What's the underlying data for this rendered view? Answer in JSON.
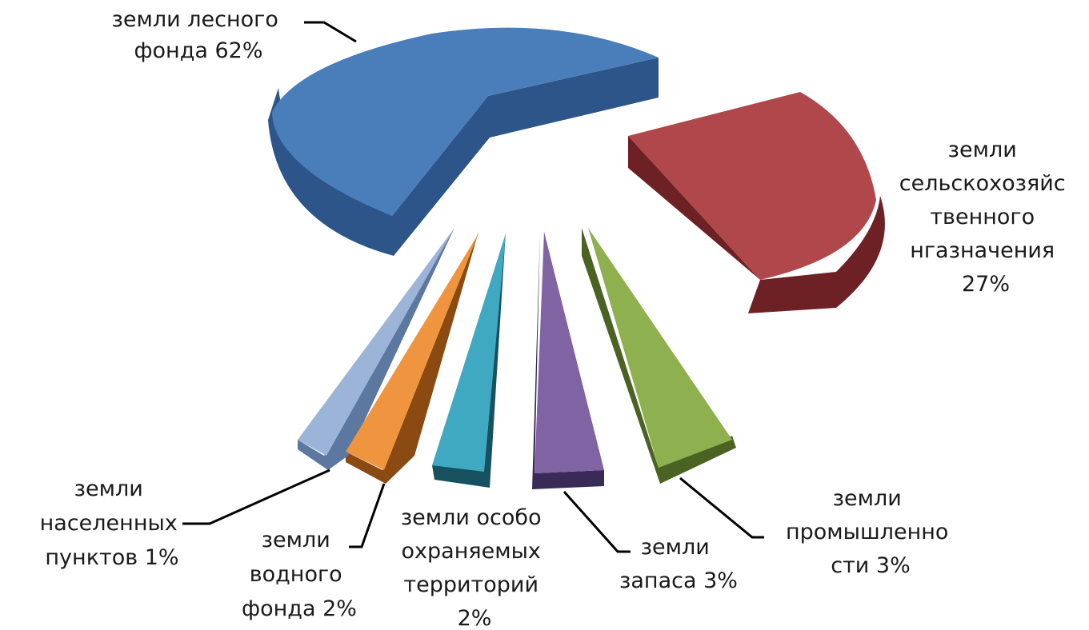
{
  "chart_data": {
    "type": "pie",
    "style": "3d-exploded",
    "slices": [
      {
        "label_lines": [
          "земли лесного",
          "фонда 62%"
        ],
        "value": 62,
        "color": "#4a7ebb"
      },
      {
        "label_lines": [
          "земли",
          "сельскохозяйс",
          "твенного",
          "нгазначения",
          "27%"
        ],
        "value": 27,
        "color": "#b0474a"
      },
      {
        "label_lines": [
          "земли",
          "промышленно",
          "сти 3%"
        ],
        "value": 3,
        "color": "#8fb04f"
      },
      {
        "label_lines": [
          "земли",
          "запаса 3%"
        ],
        "value": 3,
        "color": "#7f63a3"
      },
      {
        "label_lines": [
          "земли особо",
          "охраняемых",
          "территорий",
          "2%"
        ],
        "value": 2,
        "color": "#40a9c2"
      },
      {
        "label_lines": [
          "земли",
          "водного",
          "фонда 2%"
        ],
        "value": 2,
        "color": "#f0953f"
      },
      {
        "label_lines": [
          "земли",
          "населенных",
          "пунктов 1%"
        ],
        "value": 1,
        "color": "#9cb4d8"
      }
    ]
  }
}
